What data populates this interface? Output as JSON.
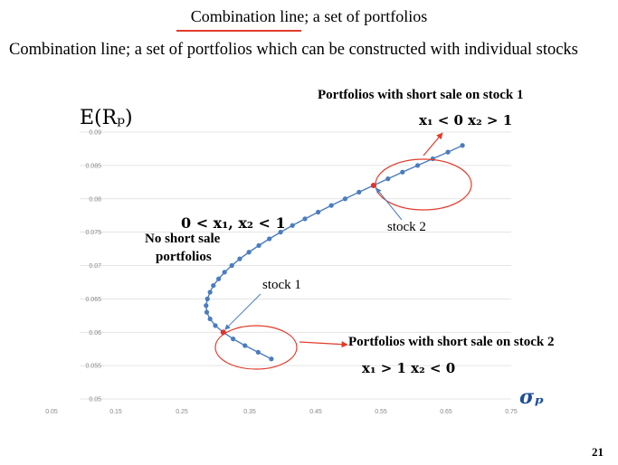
{
  "slide": {
    "title": "Combination line; a set of  portfolios",
    "subtitle": "Combination line; a set of portfolios which can be constructed with individual stocks",
    "page_number": "21"
  },
  "annotations": {
    "short_stock1_title": "Portfolios with short sale on stock 1",
    "short_stock1_math": "x₁ < 0   x₂ > 1",
    "short_stock2_title": "Portfolios with short sale on stock 2",
    "short_stock2_math": "x₁ > 1   x₂ < 0",
    "no_short_math": "0 < x₁, x₂ < 1",
    "no_short_line1": "No short sale",
    "no_short_line2": "portfolios",
    "stock1": "stock 1",
    "stock2": "stock 2",
    "highlight_color": "#e23b2a"
  },
  "chart_data": {
    "type": "line",
    "ylabel": "E(Rₚ)",
    "xlabel": "σₚ",
    "xlim": [
      0.05,
      0.75
    ],
    "ylim": [
      0.05,
      0.09
    ],
    "x_ticks": [
      "0.05",
      "0.15",
      "0.25",
      "0.35",
      "0.45",
      "0.55",
      "0.65",
      "0.75"
    ],
    "y_ticks": [
      "0.09",
      "0.085",
      "0.08",
      "0.075",
      "0.07",
      "0.065",
      "0.06",
      "0.055",
      "0.05"
    ],
    "grid": true,
    "series_color": "#4a7cc0",
    "points": [
      [
        0.386,
        0.056
      ],
      [
        0.366,
        0.057
      ],
      [
        0.346,
        0.058
      ],
      [
        0.328,
        0.059
      ],
      [
        0.313,
        0.06
      ],
      [
        0.301,
        0.061
      ],
      [
        0.293,
        0.062
      ],
      [
        0.288,
        0.063
      ],
      [
        0.287,
        0.064
      ],
      [
        0.289,
        0.065
      ],
      [
        0.293,
        0.066
      ],
      [
        0.298,
        0.067
      ],
      [
        0.306,
        0.068
      ],
      [
        0.315,
        0.069
      ],
      [
        0.326,
        0.07
      ],
      [
        0.338,
        0.071
      ],
      [
        0.352,
        0.072
      ],
      [
        0.367,
        0.073
      ],
      [
        0.383,
        0.074
      ],
      [
        0.4,
        0.075
      ],
      [
        0.418,
        0.076
      ],
      [
        0.437,
        0.077
      ],
      [
        0.457,
        0.078
      ],
      [
        0.477,
        0.079
      ],
      [
        0.498,
        0.08
      ],
      [
        0.519,
        0.081
      ],
      [
        0.541,
        0.082
      ],
      [
        0.563,
        0.083
      ],
      [
        0.585,
        0.084
      ],
      [
        0.608,
        0.085
      ],
      [
        0.631,
        0.086
      ],
      [
        0.654,
        0.087
      ],
      [
        0.676,
        0.088
      ]
    ],
    "stock1": [
      0.313,
      0.06
    ],
    "stock2": [
      0.541,
      0.082
    ]
  }
}
